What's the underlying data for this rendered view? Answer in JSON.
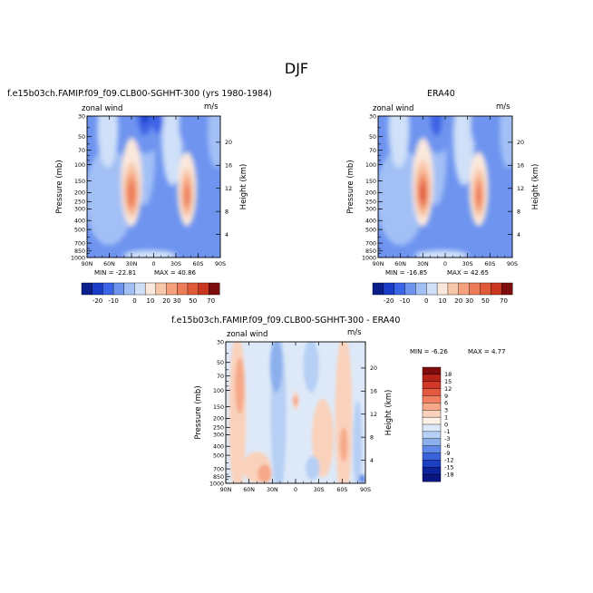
{
  "page": {
    "season": "DJF"
  },
  "panels": [
    {
      "title": "f.e15b03ch.FAMIP.f09_f09.CLB00-SGHHT-300 (yrs 1980-1984)",
      "variable": "zonal wind",
      "units": "m/s",
      "min_label": "MIN = -22.81",
      "max_label": "MAX = 40.86"
    },
    {
      "title": "ERA40",
      "variable": "zonal wind",
      "units": "m/s",
      "min_label": "MIN = -16.85",
      "max_label": "MAX = 42.65"
    },
    {
      "title": "f.e15b03ch.FAMIP.f09_f09.CLB00-SGHHT-300 - ERA40",
      "variable": "zonal wind",
      "units": "m/s",
      "min_label": "MIN = -6.26",
      "max_label": "MAX = 4.77"
    }
  ],
  "chart_data": [
    {
      "type": "heatmap",
      "title": "f.e15b03ch.FAMIP.f09_f09.CLB00-SGHHT-300 (yrs 1980-1984)",
      "xlabel": "",
      "ylabel": "Pressure (mb)",
      "y2label": "Height (km)",
      "x_ticks": [
        "90N",
        "60N",
        "30N",
        "0",
        "30S",
        "60S",
        "90S"
      ],
      "y_ticks": [
        30,
        50,
        70,
        100,
        150,
        200,
        250,
        300,
        400,
        500,
        700,
        850,
        1000
      ],
      "y_scale": "log",
      "y2_ticks": [
        4,
        8,
        12,
        16,
        20
      ],
      "xlim": [
        90,
        -90
      ],
      "ylim": [
        1000,
        30
      ],
      "min": -22.81,
      "max": 40.86,
      "colorbar_levels": [
        -20,
        -10,
        0,
        10,
        20,
        30,
        40,
        50,
        70
      ],
      "colorbar_labels": [
        "-20",
        "-10",
        "0",
        "10",
        "20",
        "30",
        "50",
        "70"
      ],
      "colors": [
        "#0a1e8c",
        "#1a3dc8",
        "#3c64e6",
        "#6e94f0",
        "#a2c0f5",
        "#cfe0f8",
        "#fbe8dc",
        "#f8c6a8",
        "#f4a07c",
        "#ec7c58",
        "#e05a3a",
        "#c8371e",
        "#7e0d0d"
      ]
    },
    {
      "type": "heatmap",
      "title": "ERA40",
      "xlabel": "",
      "ylabel": "Pressure (mb)",
      "y2label": "Height (km)",
      "x_ticks": [
        "90N",
        "60N",
        "30N",
        "0",
        "30S",
        "60S",
        "90S"
      ],
      "y_ticks": [
        30,
        50,
        70,
        100,
        150,
        200,
        250,
        300,
        400,
        500,
        700,
        850,
        1000
      ],
      "y_scale": "log",
      "y2_ticks": [
        4,
        8,
        12,
        16,
        20
      ],
      "xlim": [
        90,
        -90
      ],
      "ylim": [
        1000,
        30
      ],
      "min": -16.85,
      "max": 42.65,
      "colorbar_labels": [
        "-20",
        "-10",
        "0",
        "10",
        "20",
        "30",
        "50",
        "70"
      ],
      "colors": [
        "#0a1e8c",
        "#1a3dc8",
        "#3c64e6",
        "#6e94f0",
        "#a2c0f5",
        "#cfe0f8",
        "#fbe8dc",
        "#f8c6a8",
        "#f4a07c",
        "#ec7c58",
        "#e05a3a",
        "#c8371e",
        "#7e0d0d"
      ]
    },
    {
      "type": "heatmap",
      "title": "f.e15b03ch.FAMIP.f09_f09.CLB00-SGHHT-300 - ERA40",
      "xlabel": "",
      "ylabel": "Pressure (mb)",
      "y2label": "Height (km)",
      "x_ticks": [
        "90N",
        "60N",
        "30N",
        "0",
        "30S",
        "60S",
        "90S"
      ],
      "y_ticks": [
        30,
        50,
        70,
        100,
        150,
        200,
        250,
        300,
        400,
        500,
        700,
        850,
        1000
      ],
      "y_scale": "log",
      "y2_ticks": [
        4,
        8,
        12,
        16,
        20
      ],
      "xlim": [
        90,
        -90
      ],
      "ylim": [
        1000,
        30
      ],
      "min": -6.26,
      "max": 4.77,
      "colorbar_labels": [
        "18",
        "15",
        "12",
        "9",
        "6",
        "3",
        "1",
        "0",
        "-1",
        "-3",
        "-6",
        "-9",
        "-12",
        "-15",
        "-18"
      ],
      "colors": [
        "#7e0d0d",
        "#b4231a",
        "#d2382a",
        "#e45a3e",
        "#f08060",
        "#f6a888",
        "#fad2bc",
        "#fdf0e6",
        "#dde9f8",
        "#b6cff4",
        "#8cb0ee",
        "#5f8ae6",
        "#3863dc",
        "#1d3fc4",
        "#0e239c",
        "#0a1580"
      ]
    }
  ]
}
